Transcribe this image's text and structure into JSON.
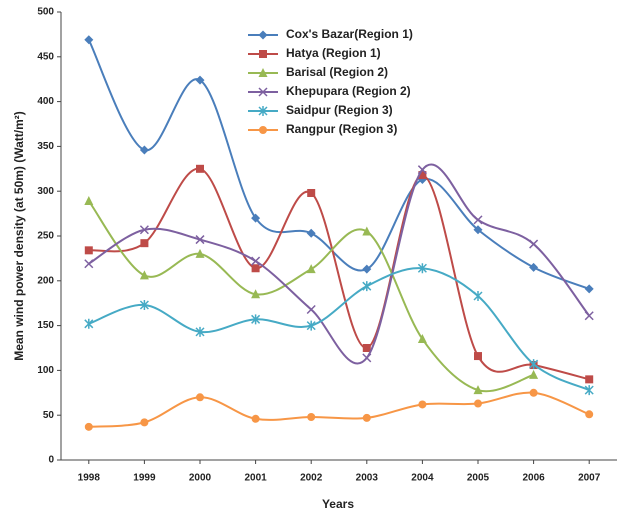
{
  "chart_data": {
    "type": "line",
    "x_label": "Years",
    "y_label": "Mean wind power density (at 50m) (Watt/m²)",
    "x": [
      1998,
      1999,
      2000,
      2001,
      2002,
      2003,
      2004,
      2005,
      2006,
      2007
    ],
    "xlim": [
      1997.5,
      2007.5
    ],
    "xticks": [
      1998,
      1999,
      2000,
      2001,
      2002,
      2003,
      2004,
      2005,
      2006,
      2007
    ],
    "ylim": [
      0,
      500
    ],
    "yticks": [
      0,
      50,
      100,
      150,
      200,
      250,
      300,
      350,
      400,
      450,
      500
    ],
    "smooth": true,
    "series": [
      {
        "name": "Cox's Bazar(Region 1)",
        "color": "#4a7ebb",
        "marker": "diamond",
        "values": [
          469,
          346,
          424,
          270,
          253,
          213,
          313,
          257,
          215,
          191
        ]
      },
      {
        "name": "Hatya (Region 1)",
        "color": "#be4b48",
        "marker": "square",
        "values": [
          234,
          242,
          325,
          214,
          298,
          125,
          318,
          116,
          106,
          90
        ]
      },
      {
        "name": "Barisal (Region 2)",
        "color": "#98b954",
        "marker": "triangle",
        "values": [
          289,
          206,
          230,
          185,
          213,
          255,
          135,
          78,
          95,
          null
        ]
      },
      {
        "name": "Khepupara (Region 2)",
        "color": "#7d60a0",
        "marker": "x",
        "values": [
          219,
          257,
          246,
          222,
          168,
          114,
          324,
          268,
          241,
          161
        ]
      },
      {
        "name": "Saidpur (Region 3)",
        "color": "#46aac5",
        "marker": "star",
        "values": [
          152,
          173,
          143,
          157,
          150,
          194,
          214,
          183,
          107,
          78
        ]
      },
      {
        "name": "Rangpur (Region 3)",
        "color": "#f79646",
        "marker": "circle",
        "values": [
          37,
          42,
          70,
          46,
          48,
          47,
          62,
          63,
          75,
          51
        ]
      }
    ]
  }
}
